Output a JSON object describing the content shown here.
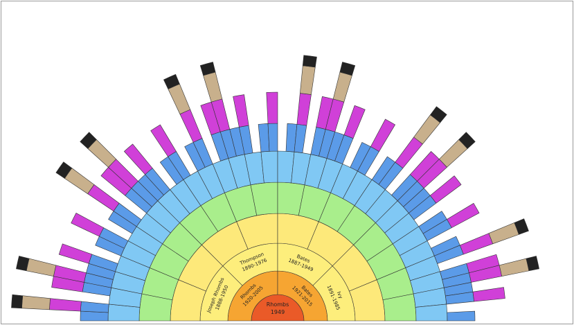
{
  "nodes": [
    {
      "name": "Rhombs",
      "dates": "1949"
    },
    {
      "name": "Rhombs",
      "dates": "1920-2005"
    },
    {
      "name": "Bates",
      "dates": "1921-2015"
    },
    {
      "name": "Joseph Rhombs",
      "dates": "1888-1950"
    },
    {
      "name": "Thompson",
      "dates": "1890-1976"
    },
    {
      "name": "Bates",
      "dates": "1887-1949"
    },
    {
      "name": "Ivy",
      "dates": "1891-1985"
    }
  ]
}
